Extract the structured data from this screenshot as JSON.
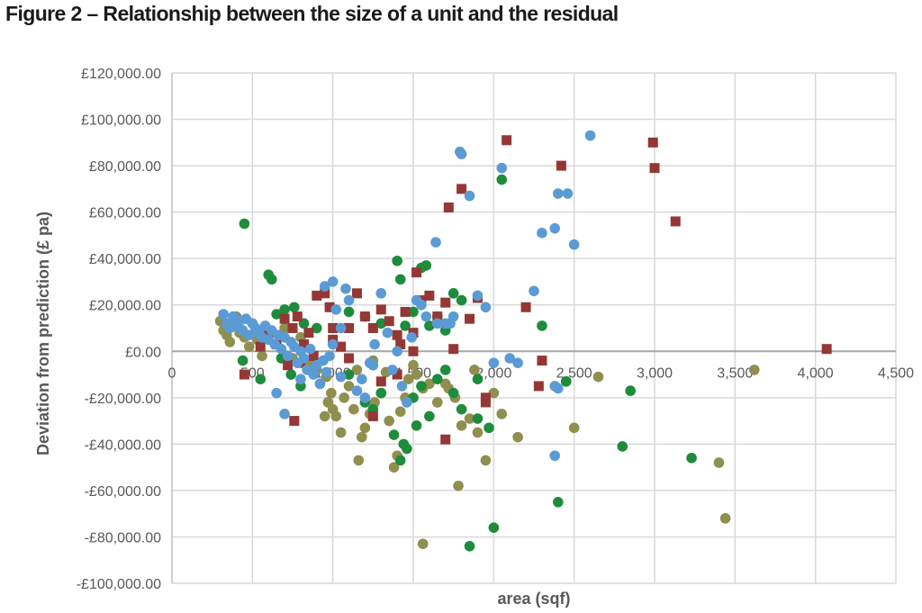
{
  "figure_title": "Figure 2 – Relationship between the size of a unit and the residual",
  "chart_data": {
    "type": "scatter",
    "title": "",
    "xlabel": "area (sqf)",
    "ylabel": "Deviation from prediction (£ pa)",
    "xlim": [
      0,
      4500
    ],
    "ylim": [
      -100000,
      120000
    ],
    "x_ticks": [
      0,
      500,
      1000,
      1500,
      2000,
      2500,
      3000,
      3500,
      4000,
      4500
    ],
    "x_tick_labels": [
      "0",
      "500",
      "1,000",
      "1,500",
      "2,000",
      "2,500",
      "3,000",
      "3,500",
      "4,000",
      "4,500"
    ],
    "y_ticks": [
      120000,
      100000,
      80000,
      60000,
      40000,
      20000,
      0,
      -20000,
      -40000,
      -60000,
      -80000,
      -100000
    ],
    "y_tick_labels": [
      "£120,000.00",
      "£100,000.00",
      "£80,000.00",
      "£60,000.00",
      "£40,000.00",
      "£20,000.00",
      "£0.00",
      "-£20,000.00",
      "-£40,000.00",
      "-£60,000.00",
      "-£80,000.00",
      "-£100,000.00"
    ],
    "grid": true,
    "legend": "none",
    "series": [
      {
        "color": "#8f8f4f",
        "marker": "circle",
        "points": [
          [
            300,
            13000
          ],
          [
            320,
            9000
          ],
          [
            340,
            7000
          ],
          [
            360,
            4000
          ],
          [
            380,
            11000
          ],
          [
            400,
            15000
          ],
          [
            420,
            8000
          ],
          [
            450,
            6000
          ],
          [
            480,
            2000
          ],
          [
            500,
            12000
          ],
          [
            530,
            5000
          ],
          [
            560,
            -2000
          ],
          [
            600,
            9000
          ],
          [
            640,
            3000
          ],
          [
            700,
            10000
          ],
          [
            750,
            -3000
          ],
          [
            800,
            6000
          ],
          [
            850,
            -5000
          ],
          [
            900,
            -8000
          ],
          [
            920,
            -14000
          ],
          [
            950,
            -28000
          ],
          [
            970,
            -22000
          ],
          [
            990,
            -18000
          ],
          [
            1000,
            -25000
          ],
          [
            1020,
            -28000
          ],
          [
            1050,
            -35000
          ],
          [
            1070,
            -20000
          ],
          [
            1100,
            -15000
          ],
          [
            1130,
            -25000
          ],
          [
            1160,
            -47000
          ],
          [
            1180,
            -37000
          ],
          [
            1200,
            -33000
          ],
          [
            1230,
            -27000
          ],
          [
            1260,
            -22000
          ],
          [
            1300,
            -18000
          ],
          [
            1350,
            -30000
          ],
          [
            1380,
            -50000
          ],
          [
            1400,
            -45000
          ],
          [
            1420,
            -26000
          ],
          [
            1450,
            -20000
          ],
          [
            1470,
            -12000
          ],
          [
            1500,
            -6000
          ],
          [
            1520,
            -10000
          ],
          [
            1560,
            -83000
          ],
          [
            1600,
            -14000
          ],
          [
            1650,
            -22000
          ],
          [
            1700,
            -14000
          ],
          [
            1720,
            -16000
          ],
          [
            1760,
            -20000
          ],
          [
            1780,
            -58000
          ],
          [
            1800,
            -32000
          ],
          [
            1850,
            -29000
          ],
          [
            1900,
            -35000
          ],
          [
            1950,
            -47000
          ],
          [
            2000,
            -18000
          ],
          [
            2050,
            -27000
          ],
          [
            2150,
            -37000
          ],
          [
            2500,
            -33000
          ],
          [
            2650,
            -11000
          ],
          [
            3400,
            -48000
          ],
          [
            3440,
            -72000
          ],
          [
            3620,
            -8000
          ],
          [
            960,
            -11000
          ],
          [
            1150,
            -8000
          ],
          [
            1250,
            -4000
          ],
          [
            1330,
            -9000
          ],
          [
            1560,
            -16000
          ],
          [
            1880,
            -8000
          ]
        ]
      },
      {
        "color": "#1e8c3c",
        "marker": "circle",
        "points": [
          [
            450,
            55000
          ],
          [
            600,
            33000
          ],
          [
            620,
            31000
          ],
          [
            650,
            16000
          ],
          [
            700,
            18000
          ],
          [
            760,
            19000
          ],
          [
            820,
            12000
          ],
          [
            900,
            10000
          ],
          [
            440,
            -4000
          ],
          [
            550,
            -12000
          ],
          [
            680,
            -3000
          ],
          [
            740,
            -10000
          ],
          [
            800,
            -15000
          ],
          [
            1100,
            17000
          ],
          [
            1200,
            15000
          ],
          [
            1300,
            12000
          ],
          [
            1400,
            39000
          ],
          [
            1420,
            31000
          ],
          [
            1450,
            11000
          ],
          [
            1500,
            17000
          ],
          [
            1550,
            36000
          ],
          [
            1580,
            37000
          ],
          [
            1600,
            11000
          ],
          [
            1650,
            15000
          ],
          [
            1700,
            9000
          ],
          [
            1750,
            25000
          ],
          [
            1800,
            22000
          ],
          [
            1100,
            -10000
          ],
          [
            1200,
            -22000
          ],
          [
            1250,
            -25000
          ],
          [
            1300,
            -18000
          ],
          [
            1380,
            -36000
          ],
          [
            1420,
            -47000
          ],
          [
            1440,
            -40000
          ],
          [
            1460,
            -42000
          ],
          [
            1500,
            -20000
          ],
          [
            1550,
            -15000
          ],
          [
            1600,
            -28000
          ],
          [
            1650,
            -12000
          ],
          [
            1700,
            -8000
          ],
          [
            1750,
            -18000
          ],
          [
            1800,
            -25000
          ],
          [
            1850,
            -84000
          ],
          [
            1900,
            -12000
          ],
          [
            2000,
            -76000
          ],
          [
            2050,
            74000
          ],
          [
            2300,
            11000
          ],
          [
            2400,
            -65000
          ],
          [
            2450,
            -13000
          ],
          [
            2800,
            -41000
          ],
          [
            2850,
            -17000
          ],
          [
            3230,
            -46000
          ],
          [
            1520,
            -32000
          ],
          [
            1900,
            -29000
          ],
          [
            1970,
            -33000
          ],
          [
            2450,
            -13000
          ]
        ]
      },
      {
        "color": "#953735",
        "marker": "square",
        "points": [
          [
            450,
            -10000
          ],
          [
            550,
            2000
          ],
          [
            600,
            8000
          ],
          [
            650,
            3000
          ],
          [
            700,
            14000
          ],
          [
            720,
            -6000
          ],
          [
            750,
            10000
          ],
          [
            780,
            15000
          ],
          [
            800,
            -5000
          ],
          [
            820,
            3000
          ],
          [
            850,
            8000
          ],
          [
            880,
            -2000
          ],
          [
            900,
            24000
          ],
          [
            950,
            25000
          ],
          [
            980,
            19000
          ],
          [
            1000,
            5000
          ],
          [
            1050,
            2000
          ],
          [
            1100,
            10000
          ],
          [
            1150,
            25000
          ],
          [
            1200,
            15000
          ],
          [
            1250,
            10000
          ],
          [
            1300,
            18000
          ],
          [
            1350,
            13000
          ],
          [
            1400,
            7000
          ],
          [
            1420,
            3000
          ],
          [
            1450,
            17000
          ],
          [
            1500,
            8000
          ],
          [
            1520,
            34000
          ],
          [
            1550,
            22000
          ],
          [
            1600,
            24000
          ],
          [
            1650,
            15000
          ],
          [
            1700,
            21000
          ],
          [
            1720,
            62000
          ],
          [
            1800,
            70000
          ],
          [
            1850,
            14000
          ],
          [
            1900,
            23000
          ],
          [
            1950,
            -22000
          ],
          [
            2080,
            91000
          ],
          [
            2200,
            19000
          ],
          [
            2300,
            -4000
          ],
          [
            2280,
            -15000
          ],
          [
            2420,
            80000
          ],
          [
            2990,
            90000
          ],
          [
            3000,
            79000
          ],
          [
            3130,
            56000
          ],
          [
            4070,
            1000
          ],
          [
            760,
            -30000
          ],
          [
            1250,
            -28000
          ],
          [
            1300,
            -13000
          ],
          [
            1400,
            -10000
          ],
          [
            1500,
            0
          ],
          [
            1700,
            -38000
          ],
          [
            1750,
            1000
          ],
          [
            1950,
            -20000
          ],
          [
            1000,
            10000
          ],
          [
            1100,
            -3000
          ]
        ]
      },
      {
        "color": "#5b9bd5",
        "marker": "circle",
        "points": [
          [
            320,
            16000
          ],
          [
            340,
            12000
          ],
          [
            360,
            10000
          ],
          [
            380,
            15000
          ],
          [
            400,
            11000
          ],
          [
            420,
            13000
          ],
          [
            440,
            9000
          ],
          [
            460,
            14000
          ],
          [
            480,
            7000
          ],
          [
            500,
            12000
          ],
          [
            520,
            10000
          ],
          [
            540,
            8000
          ],
          [
            560,
            6000
          ],
          [
            580,
            11000
          ],
          [
            600,
            5000
          ],
          [
            620,
            9000
          ],
          [
            640,
            3000
          ],
          [
            660,
            7000
          ],
          [
            680,
            1000
          ],
          [
            700,
            6000
          ],
          [
            720,
            -2000
          ],
          [
            740,
            4000
          ],
          [
            760,
            2000
          ],
          [
            780,
            -5000
          ],
          [
            800,
            0
          ],
          [
            820,
            -3000
          ],
          [
            840,
            -8000
          ],
          [
            860,
            1000
          ],
          [
            880,
            -10000
          ],
          [
            900,
            -6000
          ],
          [
            920,
            -14000
          ],
          [
            940,
            -4000
          ],
          [
            960,
            -9000
          ],
          [
            980,
            -2000
          ],
          [
            1000,
            30000
          ],
          [
            1020,
            18000
          ],
          [
            1050,
            10000
          ],
          [
            1080,
            27000
          ],
          [
            1100,
            22000
          ],
          [
            1150,
            -17000
          ],
          [
            1180,
            -12000
          ],
          [
            1200,
            -20000
          ],
          [
            1230,
            -5000
          ],
          [
            1260,
            3000
          ],
          [
            1300,
            25000
          ],
          [
            1340,
            8000
          ],
          [
            1370,
            -8000
          ],
          [
            1400,
            0
          ],
          [
            1430,
            -15000
          ],
          [
            1460,
            -22000
          ],
          [
            1490,
            6000
          ],
          [
            1520,
            22000
          ],
          [
            1550,
            20000
          ],
          [
            1580,
            15000
          ],
          [
            1640,
            47000
          ],
          [
            1700,
            12000
          ],
          [
            1750,
            15000
          ],
          [
            1790,
            86000
          ],
          [
            1800,
            85000
          ],
          [
            1850,
            67000
          ],
          [
            1900,
            24000
          ],
          [
            1950,
            19000
          ],
          [
            2000,
            -5000
          ],
          [
            2050,
            79000
          ],
          [
            2100,
            -3000
          ],
          [
            2150,
            -5000
          ],
          [
            2250,
            26000
          ],
          [
            2300,
            51000
          ],
          [
            2380,
            53000
          ],
          [
            2400,
            68000
          ],
          [
            2460,
            68000
          ],
          [
            2500,
            46000
          ],
          [
            2600,
            93000
          ],
          [
            2380,
            -15000
          ],
          [
            2400,
            -16000
          ],
          [
            2380,
            -45000
          ],
          [
            650,
            -18000
          ],
          [
            700,
            -27000
          ],
          [
            800,
            -12000
          ],
          [
            950,
            28000
          ],
          [
            1000,
            3000
          ],
          [
            1050,
            -11000
          ],
          [
            1250,
            -6000
          ],
          [
            1650,
            12000
          ],
          [
            1730,
            12000
          ]
        ]
      }
    ]
  }
}
